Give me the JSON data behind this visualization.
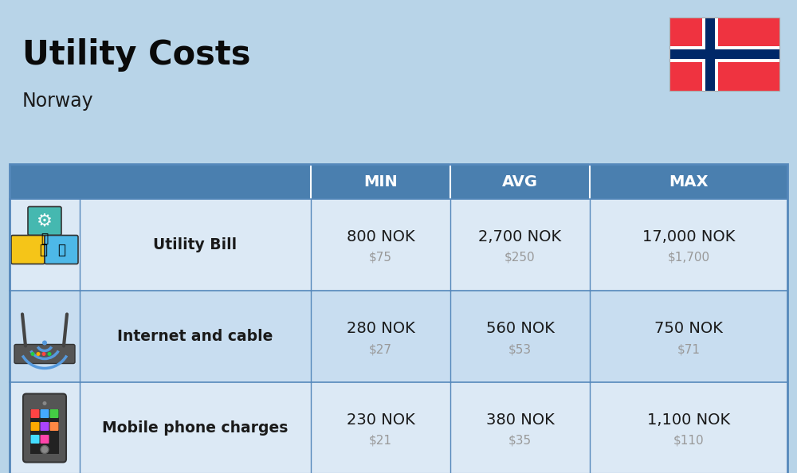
{
  "title": "Utility Costs",
  "subtitle": "Norway",
  "background_color": "#b8d4e8",
  "header_bg_color": "#4a7faf",
  "header_text_color": "#ffffff",
  "row_bg_color_1": "#dce9f5",
  "row_bg_color_2": "#c8ddf0",
  "table_border_color": "#5588bb",
  "columns": [
    "MIN",
    "AVG",
    "MAX"
  ],
  "rows": [
    {
      "label": "Utility Bill",
      "min_nok": "800 NOK",
      "min_usd": "$75",
      "avg_nok": "2,700 NOK",
      "avg_usd": "$250",
      "max_nok": "17,000 NOK",
      "max_usd": "$1,700"
    },
    {
      "label": "Internet and cable",
      "min_nok": "280 NOK",
      "min_usd": "$27",
      "avg_nok": "560 NOK",
      "avg_usd": "$53",
      "max_nok": "750 NOK",
      "max_usd": "$71"
    },
    {
      "label": "Mobile phone charges",
      "min_nok": "230 NOK",
      "min_usd": "$21",
      "avg_nok": "380 NOK",
      "avg_usd": "$35",
      "max_nok": "1,100 NOK",
      "max_usd": "$110"
    }
  ],
  "nok_color": "#1a1a1a",
  "usd_color": "#999999",
  "label_color": "#1a1a1a",
  "title_color": "#0a0a0a",
  "subtitle_color": "#1a1a1a",
  "flag_red": "#ef3340",
  "flag_blue": "#002868",
  "flag_white": "#ffffff"
}
